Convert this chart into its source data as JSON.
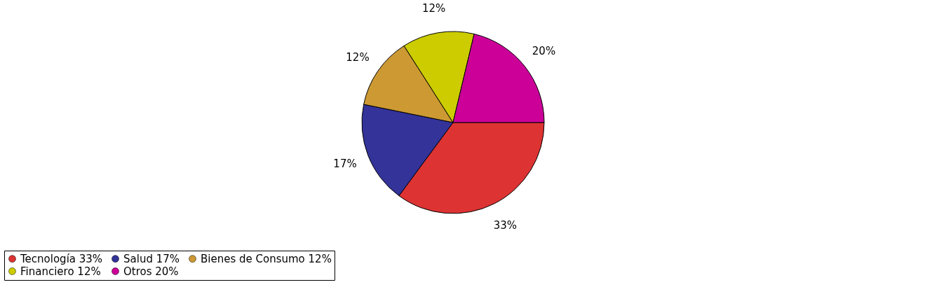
{
  "chart_data": {
    "type": "pie",
    "categories": [
      "Tecnología",
      "Salud",
      "Bienes de Consumo",
      "Financiero",
      "Otros"
    ],
    "values": [
      33,
      17,
      12,
      12,
      20
    ],
    "colors": [
      "#dd3333",
      "#333399",
      "#cc9933",
      "#cccc00",
      "#cc0099"
    ],
    "value_labels": [
      "33%",
      "17%",
      "12%",
      "12%",
      "20%"
    ],
    "legend": "bottom"
  }
}
